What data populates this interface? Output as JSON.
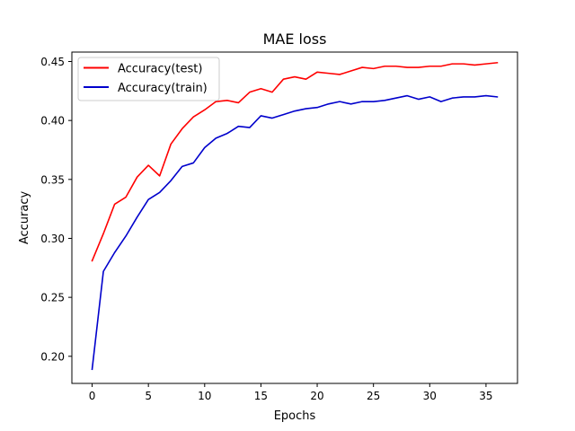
{
  "chart_data": {
    "type": "line",
    "title": "MAE loss",
    "xlabel": "Epochs",
    "ylabel": "Accuracy",
    "xlim": [
      -1.8,
      37.8
    ],
    "ylim": [
      0.177,
      0.458
    ],
    "xticks": [
      0,
      5,
      10,
      15,
      20,
      25,
      30,
      35
    ],
    "yticks": [
      0.2,
      0.25,
      0.3,
      0.35,
      0.4,
      0.45
    ],
    "xtick_labels": [
      "0",
      "5",
      "10",
      "15",
      "20",
      "25",
      "30",
      "35"
    ],
    "ytick_labels": [
      "0.20",
      "0.25",
      "0.30",
      "0.35",
      "0.40",
      "0.45"
    ],
    "grid": false,
    "legend_position": "top-left",
    "x": [
      0,
      1,
      2,
      3,
      4,
      5,
      6,
      7,
      8,
      9,
      10,
      11,
      12,
      13,
      14,
      15,
      16,
      17,
      18,
      19,
      20,
      21,
      22,
      23,
      24,
      25,
      26,
      27,
      28,
      29,
      30,
      31,
      32,
      33,
      34,
      35,
      36
    ],
    "series": [
      {
        "name": "Accuracy(test)",
        "color": "#ff0000",
        "values": [
          0.281,
          0.304,
          0.329,
          0.335,
          0.352,
          0.362,
          0.353,
          0.38,
          0.393,
          0.403,
          0.409,
          0.416,
          0.417,
          0.415,
          0.424,
          0.427,
          0.424,
          0.435,
          0.437,
          0.435,
          0.441,
          0.44,
          0.439,
          0.442,
          0.445,
          0.444,
          0.446,
          0.446,
          0.445,
          0.445,
          0.446,
          0.446,
          0.448,
          0.448,
          0.447,
          0.448,
          0.449
        ]
      },
      {
        "name": "Accuracy(train)",
        "color": "#0000cc",
        "values": [
          0.189,
          0.272,
          0.288,
          0.302,
          0.318,
          0.333,
          0.339,
          0.349,
          0.361,
          0.364,
          0.377,
          0.385,
          0.389,
          0.395,
          0.394,
          0.404,
          0.402,
          0.405,
          0.408,
          0.41,
          0.411,
          0.414,
          0.416,
          0.414,
          0.416,
          0.416,
          0.417,
          0.419,
          0.421,
          0.418,
          0.42,
          0.416,
          0.419,
          0.42,
          0.42,
          0.421,
          0.42
        ]
      }
    ]
  }
}
